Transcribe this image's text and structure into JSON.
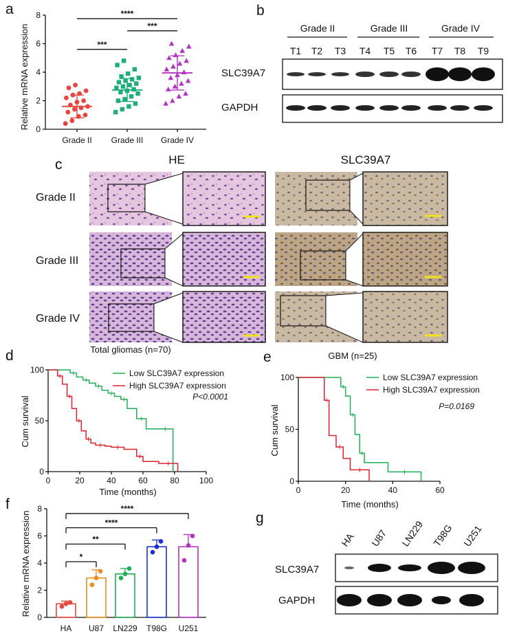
{
  "panels": {
    "a": "a",
    "b": "b",
    "c": "c",
    "d": "d",
    "e": "e",
    "f": "f",
    "g": "g"
  },
  "panel_a": {
    "ylabel": "Relative mRNA expression",
    "yticks": [
      "0",
      "2",
      "4",
      "6",
      "8"
    ],
    "groups": [
      "Grade II",
      "Grade III",
      "Grade IV"
    ],
    "colors": [
      "#e8463c",
      "#1fae7a",
      "#b533c2"
    ],
    "signif": [
      "***",
      "***",
      "****"
    ]
  },
  "panel_b": {
    "groups": [
      "Grade II",
      "Grade III",
      "Grade IV"
    ],
    "lanes": [
      "T1",
      "T2",
      "T3",
      "T4",
      "T5",
      "T6",
      "T7",
      "T8",
      "T9"
    ],
    "rows": [
      "SLC39A7",
      "GAPDH"
    ]
  },
  "panel_c": {
    "headers": [
      "HE",
      "SLC39A7"
    ],
    "rows": [
      "Grade II",
      "Grade III",
      "Grade IV"
    ]
  },
  "panel_d": {
    "title": "Total gliomas (n=70)",
    "ylabel": "Cum survival",
    "xlabel": "Time (months)",
    "xticks": [
      "0",
      "20",
      "40",
      "60",
      "80",
      "100"
    ],
    "yticks": [
      "0",
      "50",
      "100"
    ],
    "legend": [
      "Low SLC39A7 expression",
      "High SLC39A7 expression"
    ],
    "pvalue": "P<0.0001",
    "colors": [
      "#1fae55",
      "#e0202f"
    ]
  },
  "panel_e": {
    "title": "GBM (n=25)",
    "ylabel": "Cum survival",
    "xlabel": "Time (months)",
    "xticks": [
      "0",
      "20",
      "40",
      "60"
    ],
    "yticks": [
      "0",
      "50",
      "100"
    ],
    "legend": [
      "Low SLC39A7 expression",
      "High SLC39A7 expression"
    ],
    "pvalue": "P=0.0169",
    "colors": [
      "#1fae55",
      "#e0202f"
    ]
  },
  "panel_f": {
    "ylabel": "Relative mRNA expression",
    "yticks": [
      "0",
      "2",
      "4",
      "6",
      "8"
    ],
    "groups": [
      "HA",
      "U87",
      "LN229",
      "T98G",
      "U251"
    ],
    "colors": [
      "#e8463c",
      "#f08a1c",
      "#1fae55",
      "#1a2fd0",
      "#b533c2"
    ],
    "signif": [
      "*",
      "**",
      "****",
      "****"
    ]
  },
  "panel_g": {
    "lanes": [
      "HA",
      "U87",
      "LN229",
      "T98G",
      "U251"
    ],
    "rows": [
      "SLC39A7",
      "GAPDH"
    ]
  },
  "chart_data": [
    {
      "type": "scatter",
      "panel": "a",
      "ylabel": "Relative mRNA expression",
      "ylim": [
        0,
        8
      ],
      "categories": [
        "Grade II",
        "Grade III",
        "Grade IV"
      ],
      "series": [
        {
          "values": [
            0.4,
            0.6,
            0.9,
            1.0,
            1.2,
            1.4,
            1.5,
            1.6,
            1.7,
            1.9,
            2.0,
            2.2,
            2.4,
            2.5,
            2.7,
            2.9,
            3.1
          ],
          "mean": 1.6,
          "sd": 0.8
        },
        {
          "values": [
            1.2,
            1.4,
            1.6,
            1.8,
            2.0,
            2.1,
            2.3,
            2.5,
            2.6,
            2.7,
            2.8,
            2.9,
            3.0,
            3.1,
            3.2,
            3.3,
            3.4,
            3.5,
            3.6,
            3.7,
            3.9,
            4.2,
            4.5,
            4.8
          ],
          "mean": 2.75,
          "sd": 0.8
        },
        {
          "values": [
            1.8,
            2.0,
            2.3,
            2.5,
            2.8,
            3.0,
            3.2,
            3.4,
            3.6,
            3.8,
            4.0,
            4.2,
            4.4,
            4.6,
            4.8,
            5.0,
            5.2,
            5.5,
            5.8,
            6.0
          ],
          "mean": 3.95,
          "sd": 1.2
        }
      ]
    },
    {
      "type": "line",
      "panel": "d",
      "title": "Total gliomas (n=70)",
      "xlabel": "Time (months)",
      "ylabel": "Cum survival",
      "xlim": [
        0,
        100
      ],
      "ylim": [
        0,
        100
      ],
      "series": [
        {
          "name": "Low SLC39A7 expression",
          "x": [
            0,
            14,
            18,
            22,
            26,
            30,
            34,
            38,
            42,
            46,
            50,
            56,
            62,
            70,
            78,
            79
          ],
          "y": [
            100,
            97,
            93,
            90,
            87,
            84,
            80,
            77,
            74,
            71,
            62,
            52,
            42,
            42,
            42,
            0
          ]
        },
        {
          "name": "High SLC39A7 expression",
          "x": [
            0,
            6,
            9,
            12,
            15,
            18,
            21,
            24,
            27,
            30,
            36,
            40,
            48,
            56,
            60,
            70,
            82
          ],
          "y": [
            100,
            94,
            86,
            74,
            62,
            50,
            40,
            32,
            28,
            26,
            25,
            24,
            22,
            15,
            10,
            8,
            0
          ]
        }
      ]
    },
    {
      "type": "line",
      "panel": "e",
      "title": "GBM (n=25)",
      "xlabel": "Time (months)",
      "ylabel": "Cum survival",
      "xlim": [
        0,
        60
      ],
      "ylim": [
        0,
        100
      ],
      "series": [
        {
          "name": "Low SLC39A7 expression",
          "x": [
            0,
            18,
            20,
            22,
            24,
            26,
            28,
            38,
            52
          ],
          "y": [
            100,
            91,
            82,
            64,
            45,
            27,
            18,
            9,
            0
          ]
        },
        {
          "name": "High SLC39A7 expression",
          "x": [
            0,
            11,
            13,
            16,
            19,
            22,
            30
          ],
          "y": [
            100,
            78,
            44,
            33,
            22,
            11,
            0
          ]
        }
      ]
    },
    {
      "type": "bar",
      "panel": "f",
      "ylabel": "Relative mRNA expression",
      "ylim": [
        0,
        8
      ],
      "categories": [
        "HA",
        "U87",
        "LN229",
        "T98G",
        "U251"
      ],
      "values": [
        1.0,
        2.9,
        3.2,
        5.2,
        5.2
      ],
      "errors": [
        0.2,
        0.6,
        0.4,
        0.5,
        0.9
      ],
      "points": [
        [
          0.8,
          1.0,
          1.1
        ],
        [
          2.4,
          2.9,
          3.4
        ],
        [
          2.9,
          3.2,
          3.6
        ],
        [
          4.8,
          5.2,
          5.6
        ],
        [
          4.2,
          5.3,
          6.0
        ]
      ]
    }
  ]
}
